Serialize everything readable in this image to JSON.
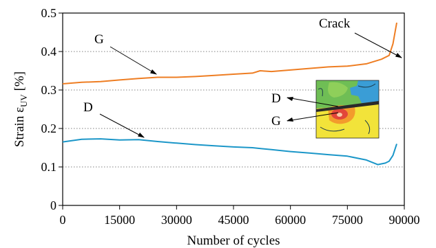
{
  "chart_data": {
    "type": "line",
    "title": "",
    "xlabel": "Number of cycles",
    "ylabel": {
      "prefix": "Strain ε",
      "subscript": "UV",
      "suffix": " [%]"
    },
    "xlim": [
      0,
      90000
    ],
    "ylim": [
      0,
      0.5
    ],
    "xticks": [
      0,
      15000,
      30000,
      45000,
      60000,
      75000,
      90000
    ],
    "xtick_labels": [
      "0",
      "15000",
      "30000",
      "45000",
      "60000",
      "75000",
      "90000"
    ],
    "yticks": [
      0,
      0.1,
      0.2,
      0.3,
      0.4,
      0.5
    ],
    "ytick_labels": [
      "0",
      "0.1",
      "0.2",
      "0.3",
      "0.4",
      "0.5"
    ],
    "grid": "horizontal dotted",
    "series": [
      {
        "label": "G",
        "color": "#ee7d22",
        "x": [
          0,
          5000,
          10000,
          15000,
          20000,
          25000,
          30000,
          35000,
          40000,
          45000,
          50000,
          52000,
          55000,
          60000,
          65000,
          70000,
          75000,
          80000,
          84000,
          86000,
          87000,
          88000
        ],
        "y": [
          0.316,
          0.32,
          0.322,
          0.326,
          0.33,
          0.333,
          0.333,
          0.335,
          0.338,
          0.341,
          0.344,
          0.35,
          0.348,
          0.352,
          0.356,
          0.36,
          0.362,
          0.368,
          0.38,
          0.39,
          0.42,
          0.475
        ]
      },
      {
        "label": "D",
        "color": "#1a96c8",
        "x": [
          0,
          5000,
          10000,
          15000,
          20000,
          25000,
          30000,
          35000,
          40000,
          45000,
          50000,
          55000,
          60000,
          65000,
          70000,
          75000,
          80000,
          83000,
          85000,
          86000,
          87000,
          88000
        ],
        "y": [
          0.165,
          0.172,
          0.173,
          0.17,
          0.171,
          0.166,
          0.162,
          0.158,
          0.155,
          0.152,
          0.15,
          0.145,
          0.14,
          0.136,
          0.132,
          0.128,
          0.118,
          0.106,
          0.11,
          0.115,
          0.13,
          0.16
        ]
      }
    ],
    "annotations": [
      {
        "text": "Crack",
        "x": 85500,
        "y": 0.385
      },
      {
        "text": "G",
        "x": 24500,
        "y": 0.333
      },
      {
        "text": "D",
        "x": 21000,
        "y": 0.171
      }
    ],
    "inset": {
      "labels": [
        "D",
        "G"
      ],
      "colors": [
        "#f2e33a",
        "#f39b2c",
        "#e2463a",
        "#6fbe55",
        "#3a9dd6"
      ]
    }
  }
}
